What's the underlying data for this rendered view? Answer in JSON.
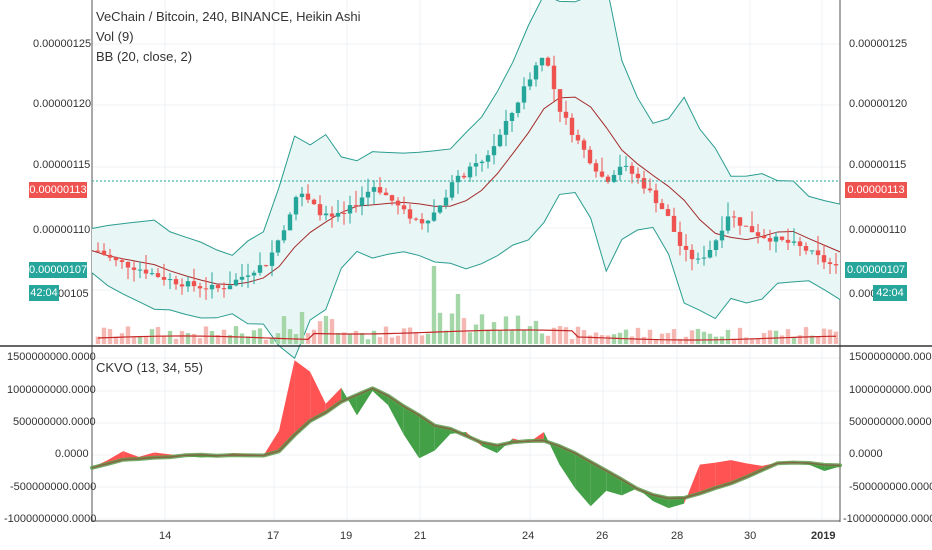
{
  "header": {
    "title": "VeChain / Bitcoin, 240, BINANCE, Heikin Ashi",
    "indicators": [
      "Vol (9)",
      "BB (20, close, 2)"
    ]
  },
  "price_axis": {
    "labels": [
      "0.00000125",
      "0.00000120",
      "0.00000115",
      "0.00000110",
      "0.00000105"
    ],
    "current_price_label": "0.00000113",
    "close_label": "0.00000107",
    "countdown_label": "42:04",
    "left_partial_label": "00105"
  },
  "osc_axis": {
    "labels": [
      "1500000000.0000",
      "1000000000.0000",
      "500000000.0000",
      "0.0000",
      "-500000000.0000",
      "-1000000000.0000"
    ]
  },
  "time_axis": {
    "labels": [
      "14",
      "17",
      "19",
      "21",
      "24",
      "26",
      "28",
      "30",
      "2019"
    ]
  },
  "colors": {
    "up": "#26a69a",
    "down": "#ef5350",
    "bb_band": "#2a9d8f",
    "bb_basis": "#a52a2a",
    "bb_fill": "#e8f6f6",
    "vol_up": "#a5d6a7",
    "vol_down": "#f5b7b1",
    "vol_ma": "#c62828",
    "osc_green": "#43a047",
    "osc_red": "#ff5252",
    "signal": "#5e9e4a"
  },
  "chart_data": [
    {
      "type": "candlestick",
      "title": "VeChain / Bitcoin, 240, BINANCE, Heikin Ashi",
      "x_labels": [
        "14",
        "17",
        "19",
        "21",
        "24",
        "26",
        "28",
        "30",
        "2019"
      ],
      "ylim": [
        1e-06,
        1.28e-06
      ],
      "ticks": [
        1.05e-06,
        1.1e-06,
        1.15e-06,
        1.2e-06,
        1.25e-06
      ],
      "current_price": 1.13e-06,
      "last_close": 1.07e-06,
      "series": [
        {
          "name": "Vol (9)",
          "type": "bar"
        },
        {
          "name": "BB (20, close, 2)",
          "type": "band"
        }
      ],
      "close_points": [
        1.082,
        1.074,
        1.07,
        1.066,
        1.061,
        1.057,
        1.054,
        1.052,
        1.051,
        1.058,
        1.066,
        1.072,
        1.098,
        1.13,
        1.118,
        1.108,
        1.111,
        1.124,
        1.135,
        1.124,
        1.112,
        1.105,
        1.114,
        1.136,
        1.146,
        1.154,
        1.172,
        1.196,
        1.221,
        1.244,
        1.198,
        1.175,
        1.156,
        1.138,
        1.152,
        1.142,
        1.128,
        1.111,
        1.082,
        1.073,
        1.086,
        1.112,
        1.102,
        1.095,
        1.091,
        1.088,
        1.083,
        1.075,
        1.068
      ]
    },
    {
      "type": "area",
      "title": "CKVO (13, 34, 55)",
      "ylim": [
        -1050000000,
        1600000000
      ],
      "ticks": [
        -1000000000,
        -500000000,
        0,
        500000000,
        1000000000,
        1500000000
      ],
      "series": [
        {
          "name": "CKVO (13, 34, 55)",
          "values": [
            -200000000,
            -80000000,
            60000000,
            -30000000,
            40000000,
            10000000,
            -20000000,
            -40000000,
            -30000000,
            30000000,
            20000000,
            -10000000,
            380000000,
            1480000000,
            1300000000,
            800000000,
            1050000000,
            620000000,
            1000000000,
            780000000,
            320000000,
            -50000000,
            70000000,
            330000000,
            360000000,
            140000000,
            30000000,
            260000000,
            190000000,
            360000000,
            -150000000,
            -520000000,
            -800000000,
            -560000000,
            -630000000,
            -520000000,
            -720000000,
            -830000000,
            -760000000,
            -150000000,
            -120000000,
            -80000000,
            -130000000,
            -170000000,
            -120000000,
            -100000000,
            -150000000,
            -250000000,
            -180000000
          ]
        }
      ]
    }
  ],
  "ckvo_label": "CKVO (13, 34, 55)"
}
